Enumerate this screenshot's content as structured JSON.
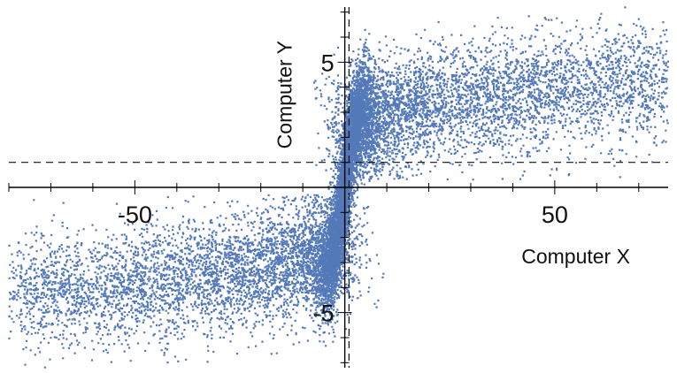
{
  "chart_data": {
    "type": "scatter",
    "title": "",
    "xlabel": "Computer X",
    "ylabel": "Computer Y",
    "xlim": [
      -80,
      77
    ],
    "ylim": [
      -7.2,
      7.2
    ],
    "x_ticks": [
      -50,
      50
    ],
    "y_ticks": [
      -5,
      5
    ],
    "x_tick_labels": [
      "-50",
      "50"
    ],
    "y_tick_labels": [
      "-5",
      "5"
    ],
    "reference_lines": {
      "vertical_x": 1,
      "horizontal_y": 1
    },
    "point_color": "#4a72b5",
    "grid": false,
    "legend": "none",
    "point_count_approx": 60000,
    "distribution": {
      "description_values": {
        "core": {
          "x_range": [
            -5,
            5
          ],
          "y_range": [
            -4,
            4
          ]
        },
        "upper_right_arm": {
          "x_range": [
            0,
            77
          ],
          "y_range": [
            1,
            6.5
          ]
        },
        "lower_left_arm": {
          "x_range": [
            -80,
            0
          ],
          "y_range": [
            -6.5,
            -1
          ]
        }
      }
    },
    "series": [
      {
        "name": "",
        "sample_points": [
          {
            "x": -70,
            "y": -4.5
          },
          {
            "x": -60,
            "y": -4.0
          },
          {
            "x": -45,
            "y": -3.5
          },
          {
            "x": -30,
            "y": -3.0
          },
          {
            "x": -15,
            "y": -2.5
          },
          {
            "x": -5,
            "y": -2.0
          },
          {
            "x": 0,
            "y": 0
          },
          {
            "x": 5,
            "y": 2.0
          },
          {
            "x": 15,
            "y": 2.5
          },
          {
            "x": 30,
            "y": 3.0
          },
          {
            "x": 45,
            "y": 3.5
          },
          {
            "x": 60,
            "y": 4.0
          },
          {
            "x": 70,
            "y": 4.5
          }
        ]
      }
    ]
  }
}
